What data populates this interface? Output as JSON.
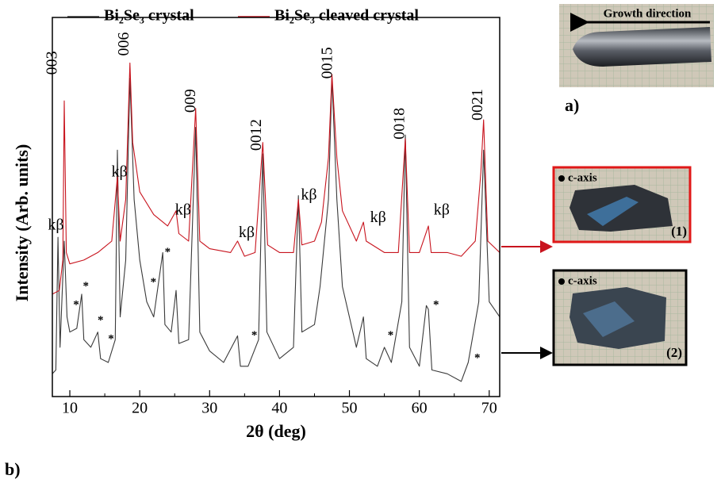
{
  "chart_data": {
    "type": "line",
    "x_label": "2θ (deg)",
    "y_label": "Intensity (Arb. units)",
    "xlim": [
      7.5,
      71.5
    ],
    "xticks": [
      10,
      20,
      30,
      40,
      50,
      60,
      70
    ],
    "ylim": [
      0,
      100
    ],
    "legend": "top",
    "series": [
      {
        "name": "Bi₂Se₃ crystal",
        "color": "#3a3a3a",
        "x": [
          7.5,
          8.0,
          8.3,
          8.6,
          9.2,
          9.6,
          10,
          11,
          11.7,
          12,
          13,
          14,
          14.4,
          15.5,
          16.5,
          16.8,
          17.2,
          18,
          18.6,
          19.2,
          20,
          21,
          22,
          23.3,
          23.6,
          24.5,
          25.2,
          25.6,
          27,
          28,
          28.6,
          30,
          32,
          34,
          34.4,
          35.5,
          37,
          37.6,
          38.2,
          40,
          42,
          42.7,
          43.2,
          45,
          45.8,
          47,
          47.5,
          48.2,
          49,
          51,
          52,
          52.4,
          54,
          55,
          56,
          57.5,
          58,
          58.6,
          60,
          61,
          61.3,
          61.8,
          64,
          66,
          67,
          68.5,
          69.2,
          70,
          71.5
        ],
        "values": [
          6,
          7,
          42,
          13,
          41,
          21,
          17,
          18,
          27,
          15,
          13,
          17,
          10,
          9,
          15,
          65,
          21,
          36,
          84,
          52,
          36,
          25,
          21,
          38,
          19,
          17,
          28,
          14,
          15,
          71,
          17,
          12,
          9,
          16,
          8,
          8,
          15,
          64,
          17,
          10,
          13,
          53,
          17,
          19,
          29,
          52,
          84,
          52,
          29,
          13,
          21,
          10,
          8,
          13,
          9,
          25,
          69,
          13,
          8,
          24,
          23,
          7,
          6,
          4,
          9,
          25,
          65,
          25,
          21
        ]
      },
      {
        "name": "Bi₂Se₃ cleaved crystal",
        "color": "#c8141e",
        "x": [
          7.5,
          8.5,
          9.0,
          9.2,
          9.5,
          10,
          12,
          14,
          16,
          16.8,
          17.2,
          18,
          18.6,
          19,
          20,
          22,
          24,
          25.2,
          25.6,
          27,
          28,
          28.6,
          30,
          33,
          34,
          35,
          36.5,
          37.6,
          38.3,
          40,
          42,
          42.7,
          43.2,
          45,
          46,
          47,
          47.5,
          48.2,
          49,
          51,
          52,
          52.4,
          55,
          57,
          57.6,
          58,
          58.6,
          60,
          61.3,
          61.7,
          64,
          66,
          68,
          68.8,
          69.2,
          69.8,
          71.5
        ],
        "values": [
          27,
          28,
          36,
          78,
          38,
          35,
          36,
          38,
          41,
          58,
          41,
          52,
          88,
          67,
          54,
          48,
          45,
          49,
          43,
          41,
          76,
          41,
          39,
          38,
          41,
          37,
          38,
          67,
          40,
          38,
          38,
          52,
          40,
          41,
          46,
          63,
          85,
          63,
          49,
          41,
          46,
          41,
          38,
          38,
          56,
          68,
          38,
          38,
          45,
          38,
          38,
          37,
          41,
          59,
          73,
          41,
          38
        ]
      }
    ],
    "peak_labels": [
      {
        "text": "003",
        "x": 7.6,
        "y": 88
      },
      {
        "text": "006",
        "x": 17.9,
        "y": 93
      },
      {
        "text": "009",
        "x": 27.4,
        "y": 78
      },
      {
        "text": "0012",
        "x": 36.8,
        "y": 69
      },
      {
        "text": "0015",
        "x": 47.0,
        "y": 88
      },
      {
        "text": "0018",
        "x": 57.3,
        "y": 72
      },
      {
        "text": "0021",
        "x": 68.5,
        "y": 77
      }
    ],
    "kbeta_labels": [
      {
        "text": "kβ",
        "x": 8.0,
        "y": 45
      },
      {
        "text": "kβ",
        "x": 17.1,
        "y": 59
      },
      {
        "text": "kβ",
        "x": 26.2,
        "y": 49
      },
      {
        "text": "kβ",
        "x": 35.3,
        "y": 43
      },
      {
        "text": "kβ",
        "x": 44.2,
        "y": 53
      },
      {
        "text": "kβ",
        "x": 54.1,
        "y": 47
      },
      {
        "text": "kβ",
        "x": 63.2,
        "y": 49
      }
    ],
    "asterisks": [
      {
        "text": "*",
        "x": 10.9,
        "y": 24
      },
      {
        "text": "*",
        "x": 12.3,
        "y": 29
      },
      {
        "text": "*",
        "x": 14.4,
        "y": 20
      },
      {
        "text": "*",
        "x": 15.9,
        "y": 15
      },
      {
        "text": "*",
        "x": 21.96,
        "y": 30
      },
      {
        "text": "*",
        "x": 24.0,
        "y": 38
      },
      {
        "text": "*",
        "x": 36.4,
        "y": 16
      },
      {
        "text": "*",
        "x": 55.9,
        "y": 16
      },
      {
        "text": "*",
        "x": 62.4,
        "y": 24
      },
      {
        "text": "*",
        "x": 68.3,
        "y": 10
      }
    ]
  },
  "panels": {
    "a": {
      "label": "a)",
      "caption": "Growth direction"
    },
    "b": {
      "label": "b)"
    },
    "one": {
      "axis": "c-axis",
      "number": "(1)"
    },
    "two": {
      "axis": "c-axis",
      "number": "(2)"
    }
  }
}
